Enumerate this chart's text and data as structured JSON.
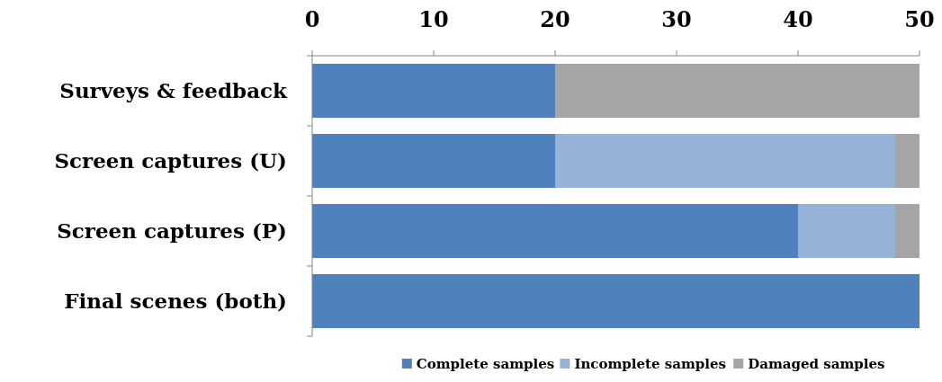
{
  "chart_data": {
    "type": "bar",
    "orientation": "horizontal",
    "stacked": true,
    "categories": [
      "Surveys & feedback",
      "Screen captures (U)",
      "Screen captures (P)",
      "Final scenes (both)"
    ],
    "series": [
      {
        "name": "Complete samples",
        "color": "#4f81bd",
        "values": [
          20,
          20,
          40,
          50
        ]
      },
      {
        "name": "Incomplete samples",
        "color": "#95b3d7",
        "values": [
          0,
          28,
          8,
          0
        ]
      },
      {
        "name": "Damaged samples",
        "color": "#a5a5a5",
        "values": [
          30,
          2,
          2,
          0
        ]
      }
    ],
    "xlim": [
      0,
      50
    ],
    "xticks": [
      0,
      10,
      20,
      30,
      40,
      50
    ],
    "grid": false,
    "legend": "bottom"
  }
}
